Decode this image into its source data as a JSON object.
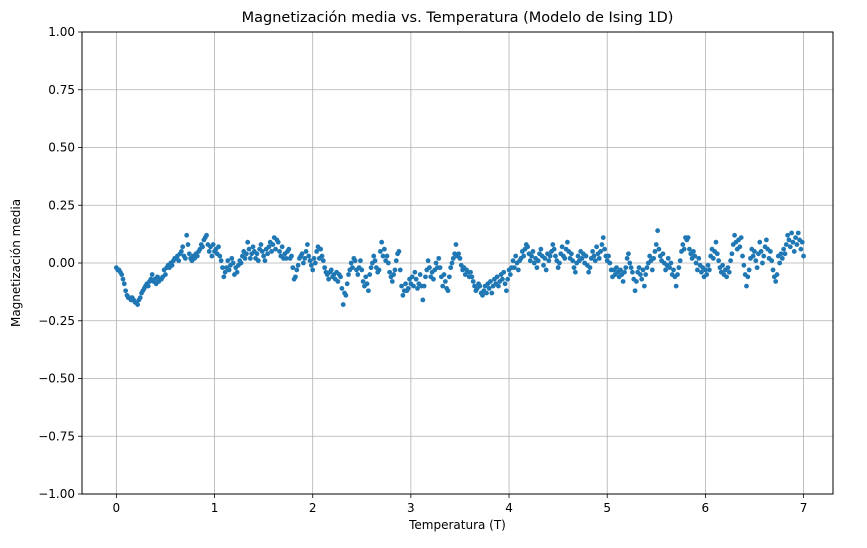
{
  "chart_data": {
    "type": "scatter",
    "title": "Magnetización media vs. Temperatura (Modelo de Ising 1D)",
    "xlabel": "Temperatura (T)",
    "ylabel": "Magnetización media",
    "xlim": [
      -0.35,
      7.3
    ],
    "ylim": [
      -1.0,
      1.0
    ],
    "xticks": [
      0,
      1,
      2,
      3,
      4,
      5,
      6,
      7
    ],
    "xtick_labels": [
      "0",
      "1",
      "2",
      "3",
      "4",
      "5",
      "6",
      "7"
    ],
    "yticks": [
      -1.0,
      -0.75,
      -0.5,
      -0.25,
      0.0,
      0.25,
      0.5,
      0.75,
      1.0
    ],
    "ytick_labels": [
      "−1.00",
      "−0.75",
      "−0.50",
      "−0.25",
      "0.00",
      "0.25",
      "0.50",
      "0.75",
      "1.00"
    ],
    "grid": true,
    "marker_color": "#1f77b4",
    "series": [
      {
        "x_start": 0.0,
        "x_end": 7.0,
        "y": [
          -0.02,
          -0.03,
          -0.03,
          -0.04,
          -0.05,
          -0.07,
          -0.09,
          -0.12,
          -0.14,
          -0.15,
          -0.15,
          -0.16,
          -0.15,
          -0.16,
          -0.17,
          -0.17,
          -0.18,
          -0.16,
          -0.15,
          -0.13,
          -0.12,
          -0.11,
          -0.1,
          -0.09,
          -0.1,
          -0.08,
          -0.07,
          -0.05,
          -0.08,
          -0.07,
          -0.09,
          -0.06,
          -0.08,
          -0.07,
          -0.07,
          -0.06,
          -0.03,
          -0.05,
          -0.02,
          -0.01,
          -0.02,
          0.0,
          -0.01,
          0.01,
          0.02,
          0.02,
          0.03,
          0.01,
          0.04,
          0.05,
          0.07,
          0.03,
          0.02,
          0.12,
          0.08,
          0.04,
          0.02,
          0.01,
          0.03,
          0.02,
          0.04,
          0.03,
          0.05,
          0.06,
          0.08,
          0.07,
          0.1,
          0.11,
          0.12,
          0.08,
          0.05,
          0.07,
          0.03,
          0.08,
          0.05,
          0.06,
          0.04,
          0.07,
          0.03,
          0.01,
          -0.02,
          -0.06,
          -0.04,
          -0.02,
          0.01,
          -0.03,
          -0.01,
          0.02,
          0.0,
          -0.05,
          -0.02,
          -0.04,
          -0.01,
          0.01,
          0.0,
          0.03,
          0.05,
          0.02,
          0.04,
          0.09,
          0.06,
          0.02,
          0.04,
          0.07,
          0.05,
          0.02,
          0.04,
          0.01,
          0.06,
          0.08,
          0.05,
          0.03,
          0.01,
          0.06,
          0.04,
          0.07,
          0.09,
          0.05,
          0.08,
          0.11,
          0.06,
          0.1,
          0.09,
          0.05,
          0.03,
          0.07,
          0.02,
          0.04,
          0.02,
          0.05,
          0.06,
          0.02,
          0.03,
          -0.02,
          -0.07,
          -0.06,
          -0.03,
          -0.01,
          0.02,
          0.03,
          0.04,
          0.0,
          0.02,
          0.05,
          0.08,
          0.03,
          0.01,
          -0.01,
          -0.03,
          0.02,
          0.0,
          0.05,
          0.07,
          0.02,
          0.06,
          0.03,
          0.01,
          -0.02,
          -0.04,
          -0.05,
          -0.07,
          -0.04,
          -0.03,
          -0.06,
          -0.05,
          -0.07,
          -0.04,
          -0.08,
          -0.05,
          -0.06,
          -0.11,
          -0.18,
          -0.13,
          -0.14,
          -0.09,
          -0.05,
          -0.03,
          0.0,
          -0.02,
          0.02,
          0.01,
          -0.03,
          -0.05,
          -0.02,
          0.01,
          -0.03,
          -0.08,
          -0.1,
          -0.06,
          -0.09,
          -0.12,
          -0.05,
          -0.02,
          0.0,
          0.03,
          0.01,
          -0.02,
          -0.04,
          -0.03,
          0.05,
          0.09,
          0.03,
          0.06,
          0.01,
          0.03,
          0.0,
          -0.04,
          -0.06,
          -0.08,
          -0.05,
          -0.03,
          0.01,
          0.04,
          0.05,
          -0.03,
          -0.1,
          -0.14,
          -0.12,
          -0.09,
          -0.12,
          -0.11,
          -0.07,
          -0.09,
          -0.06,
          -0.1,
          -0.04,
          -0.07,
          -0.11,
          -0.09,
          -0.05,
          -0.1,
          -0.16,
          -0.1,
          -0.06,
          -0.03,
          0.01,
          -0.02,
          -0.06,
          -0.04,
          -0.07,
          -0.03,
          0.0,
          -0.02,
          0.02,
          -0.02,
          -0.06,
          -0.1,
          -0.05,
          -0.08,
          -0.11,
          -0.12,
          -0.06,
          -0.02,
          0.0,
          0.02,
          0.04,
          0.08,
          0.03,
          0.04,
          0.02,
          -0.01,
          -0.03,
          -0.02,
          -0.05,
          -0.03,
          -0.04,
          -0.06,
          -0.04,
          -0.06,
          -0.08,
          -0.1,
          -0.12,
          -0.11,
          -0.09,
          -0.1,
          -0.13,
          -0.14,
          -0.12,
          -0.1,
          -0.13,
          -0.09,
          -0.11,
          -0.08,
          -0.13,
          -0.1,
          -0.07,
          -0.09,
          -0.06,
          -0.1,
          -0.08,
          -0.05,
          -0.07,
          -0.04,
          -0.09,
          -0.12,
          -0.07,
          -0.03,
          -0.05,
          -0.02,
          0.01,
          -0.02,
          0.03,
          0.0,
          -0.03,
          0.01,
          0.02,
          0.05,
          0.03,
          0.06,
          0.08,
          0.07,
          0.04,
          0.01,
          0.03,
          0.05,
          0.0,
          0.02,
          -0.02,
          0.01,
          0.04,
          0.06,
          0.03,
          -0.01,
          0.02,
          -0.03,
          0.04,
          0.01,
          0.03,
          0.05,
          0.08,
          0.06,
          0.03,
          0.01,
          -0.02,
          0.0,
          0.04,
          0.07,
          0.03,
          0.02,
          0.06,
          0.09,
          0.05,
          0.02,
          0.04,
          0.01,
          -0.02,
          -0.04,
          0.0,
          0.03,
          0.01,
          0.05,
          0.02,
          0.04,
          0.0,
          0.03,
          -0.01,
          -0.04,
          -0.02,
          0.02,
          0.05,
          0.03,
          0.01,
          0.07,
          0.04,
          0.02,
          0.05,
          0.08,
          0.11,
          0.06,
          0.03,
          0.01,
          0.03,
          0.0,
          -0.03,
          -0.06,
          -0.03,
          -0.05,
          -0.02,
          -0.04,
          -0.06,
          -0.03,
          -0.05,
          -0.08,
          -0.04,
          -0.02,
          0.02,
          0.04,
          0.0,
          -0.02,
          -0.04,
          -0.07,
          -0.12,
          -0.08,
          -0.04,
          -0.02,
          -0.05,
          -0.07,
          -0.03,
          -0.1,
          -0.05,
          -0.02,
          0.0,
          0.03,
          0.01,
          -0.03,
          0.02,
          0.05,
          0.08,
          0.14,
          0.06,
          0.03,
          0.01,
          0.04,
          0.0,
          -0.03,
          -0.01,
          0.02,
          -0.02,
          0.0,
          -0.05,
          -0.03,
          -0.06,
          -0.1,
          -0.05,
          -0.02,
          0.01,
          0.05,
          0.08,
          0.06,
          0.11,
          0.1,
          0.11,
          0.06,
          0.04,
          0.02,
          0.05,
          0.03,
          0.0,
          -0.03,
          0.02,
          -0.01,
          -0.04,
          -0.02,
          -0.06,
          -0.03,
          -0.05,
          -0.01,
          -0.03,
          0.03,
          0.06,
          0.02,
          0.05,
          0.09,
          0.04,
          0.01,
          -0.02,
          -0.04,
          -0.01,
          -0.05,
          -0.03,
          -0.06,
          -0.02,
          -0.04,
          0.01,
          0.04,
          0.08,
          0.12,
          0.09,
          0.06,
          0.1,
          0.07,
          0.11,
          0.03,
          -0.01,
          -0.05,
          -0.1,
          -0.06,
          -0.03,
          0.02,
          0.06,
          0.03,
          0.05,
          0.01,
          -0.02,
          0.04,
          0.09,
          0.05,
          0.0,
          0.03,
          0.07,
          0.1,
          0.06,
          0.02,
          0.05,
          0.01,
          -0.03,
          -0.06,
          -0.08,
          -0.05,
          0.03,
          0.0,
          0.04,
          0.02,
          0.06,
          0.04,
          0.08,
          0.12,
          0.1,
          0.07,
          0.13,
          0.09,
          0.05,
          0.11,
          0.08,
          0.13,
          0.1,
          0.06,
          0.09,
          0.03
        ]
      }
    ]
  }
}
